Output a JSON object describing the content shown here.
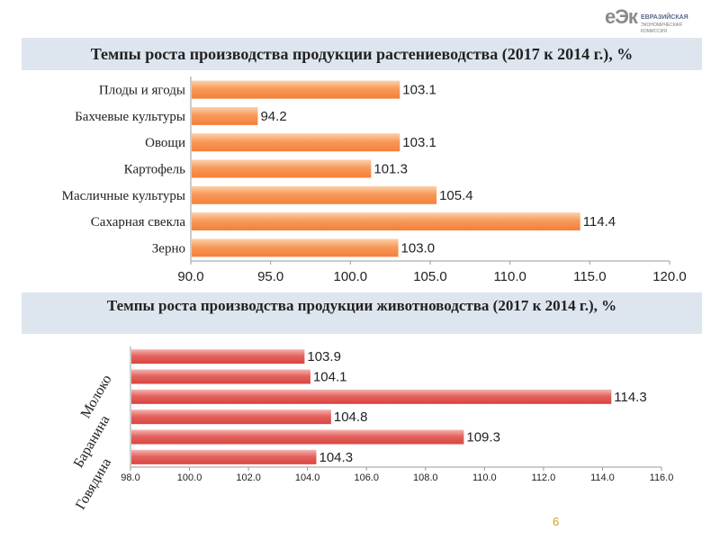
{
  "logo": {
    "mark": "еЭк",
    "line1": "ЕВРАЗИЙСКАЯ",
    "line2": "ЭКОНОМИЧЕСКАЯ",
    "line3": "КОМИССИЯ"
  },
  "page_number": "6",
  "colors": {
    "crop_bar": "#f79a5a",
    "livestock_bar": "#e05a5a",
    "band": "#dde5ee"
  },
  "chart_data": [
    {
      "type": "bar",
      "orientation": "horizontal",
      "title": "Темпы роста производства продукции растениеводства (2017 к 2014 г.), %",
      "categories": [
        "Плоды и ягоды",
        "Бахчевые культуры",
        "Овощи",
        "Картофель",
        "Масличные культуры",
        "Сахарная свекла",
        "Зерно"
      ],
      "values": [
        103.1,
        94.2,
        103.1,
        101.3,
        105.4,
        114.4,
        103.0
      ],
      "value_labels": [
        "103.1",
        "94.2",
        "103.1",
        "101.3",
        "105.4",
        "114.4",
        "103.0"
      ],
      "xlim": [
        90.0,
        120.0
      ],
      "xticks": [
        "90.0",
        "95.0",
        "100.0",
        "105.0",
        "110.0",
        "115.0",
        "120.0"
      ],
      "grid": false
    },
    {
      "type": "bar",
      "orientation": "horizontal",
      "title": "Темпы роста производства продукции животноводства (2017 к 2014 г.), %",
      "category_groups": [
        "Молоко",
        "Баранина",
        "Говядина"
      ],
      "values": [
        103.9,
        104.1,
        114.3,
        104.8,
        109.3,
        104.3
      ],
      "value_labels": [
        "103.9",
        "104.1",
        "114.3",
        "104.8",
        "109.3",
        "104.3"
      ],
      "xlim": [
        98.0,
        116.0
      ],
      "xticks": [
        "98.0",
        "100.0",
        "102.0",
        "104.0",
        "106.0",
        "108.0",
        "110.0",
        "112.0",
        "114.0",
        "116.0"
      ],
      "grid": false
    }
  ]
}
